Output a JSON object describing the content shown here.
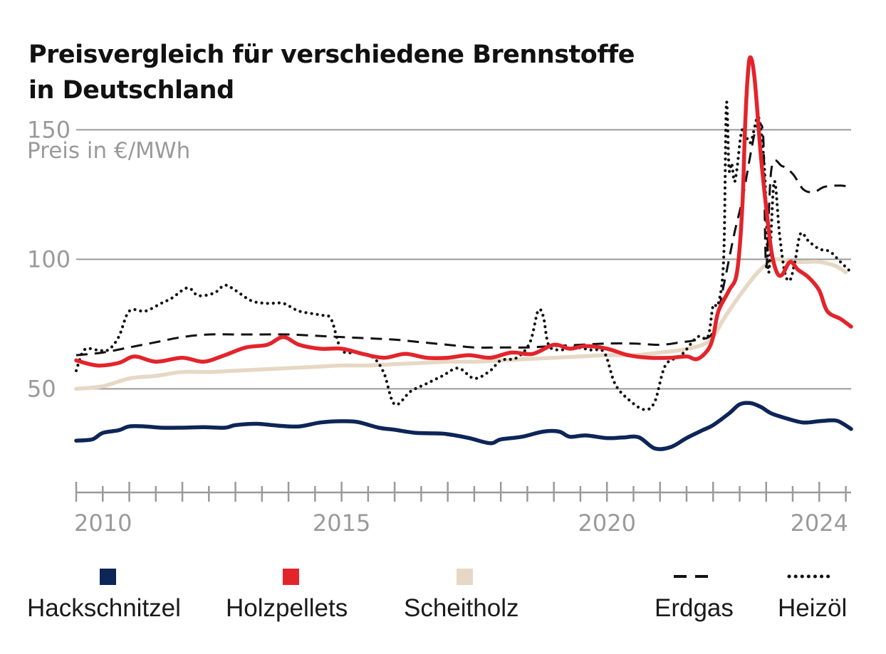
{
  "colors": {
    "hackschnitzel": "#0d2557",
    "holzpellets": "#e3242b",
    "scheitholz": "#e6d8c4",
    "erdgas": "#111111",
    "heizoel": "#111111",
    "grid": "#9a9a9a"
  },
  "chart_data": {
    "type": "line",
    "title": "Preisvergleich für verschiedene Brennstoffe in Deutschland",
    "title_lines": [
      "Preisvergleich für verschiedene Brennstoffe",
      "in Deutschland"
    ],
    "ylabel": "Preis in €/MWh",
    "xlabel": "",
    "xlim": [
      2010,
      2024.6
    ],
    "ylim": [
      10,
      160
    ],
    "yticks": [
      50,
      100,
      150
    ],
    "ytick_labels": [
      "50",
      "100",
      "150"
    ],
    "xticks_major": [
      2010,
      2015,
      2020,
      2024
    ],
    "xtick_labels": [
      "2010",
      "2015",
      "2020",
      "2024"
    ],
    "grid": true,
    "legend_position": "bottom",
    "series": [
      {
        "name": "Hackschnitzel",
        "style": "solid",
        "color_key": "hackschnitzel",
        "x": [
          2010,
          2010.3,
          2010.5,
          2010.8,
          2011,
          2011.3,
          2011.6,
          2012,
          2012.4,
          2012.8,
          2013,
          2013.4,
          2013.8,
          2014.2,
          2014.6,
          2015,
          2015.3,
          2015.7,
          2016,
          2016.4,
          2016.8,
          2017,
          2017.4,
          2017.8,
          2018,
          2018.4,
          2018.8,
          2019.1,
          2019.3,
          2019.6,
          2020,
          2020.3,
          2020.6,
          2020.9,
          2021.2,
          2021.5,
          2021.8,
          2022,
          2022.3,
          2022.5,
          2022.7,
          2022.9,
          2023.1,
          2023.4,
          2023.7,
          2024,
          2024.3,
          2024.45,
          2024.6
        ],
        "y": [
          30,
          30.5,
          33,
          34,
          35.5,
          35.5,
          35,
          35,
          35.2,
          35,
          36,
          36.5,
          35.8,
          35.5,
          37,
          37.5,
          37.2,
          35,
          34.2,
          33,
          32.8,
          32.5,
          31,
          29,
          30.5,
          31.5,
          33.5,
          33.5,
          31.5,
          32,
          31,
          31.2,
          31.3,
          27,
          27.5,
          31,
          34,
          36,
          40.5,
          44,
          44.5,
          43,
          40.5,
          38.5,
          37,
          37.5,
          37.8,
          36.5,
          34.5
        ]
      },
      {
        "name": "Holzpellets",
        "style": "solid",
        "color_key": "holzpellets",
        "x": [
          2010,
          2010.4,
          2010.8,
          2011.1,
          2011.5,
          2012,
          2012.4,
          2012.8,
          2013.2,
          2013.6,
          2013.9,
          2014.2,
          2014.6,
          2015,
          2015.4,
          2015.8,
          2016.2,
          2016.6,
          2017,
          2017.4,
          2017.8,
          2018.2,
          2018.6,
          2019,
          2019.3,
          2019.6,
          2020,
          2020.4,
          2020.8,
          2021.2,
          2021.5,
          2021.7,
          2021.9,
          2022,
          2022.1,
          2022.3,
          2022.45,
          2022.55,
          2022.6,
          2022.65,
          2022.7,
          2022.78,
          2022.9,
          2023,
          2023.1,
          2023.2,
          2023.3,
          2023.45,
          2023.6,
          2023.8,
          2024,
          2024.15,
          2024.4,
          2024.6
        ],
        "y": [
          61,
          59,
          60,
          62.5,
          60.5,
          62,
          60.5,
          63,
          66,
          67,
          70,
          67,
          65.5,
          65.5,
          63.5,
          62,
          63.5,
          62,
          62,
          63,
          62,
          64,
          63.5,
          67,
          65.5,
          66.5,
          65.5,
          63,
          62,
          62,
          62.5,
          61.5,
          65,
          70,
          80,
          88,
          95,
          120,
          150,
          170,
          178,
          170,
          140,
          120,
          103,
          95,
          94,
          99,
          96,
          93,
          88,
          80,
          77,
          74
        ]
      },
      {
        "name": "Scheitholz",
        "style": "solid",
        "color_key": "scheitholz",
        "x": [
          2010,
          2010.5,
          2011,
          2011.5,
          2012,
          2012.5,
          2013,
          2013.5,
          2014,
          2014.5,
          2015,
          2015.5,
          2016,
          2016.5,
          2017,
          2017.5,
          2018,
          2018.5,
          2019,
          2019.5,
          2020,
          2020.5,
          2021,
          2021.4,
          2021.8,
          2022,
          2022.2,
          2022.5,
          2022.8,
          2023,
          2023.2,
          2023.5,
          2023.8,
          2024,
          2024.3,
          2024.5
        ],
        "y": [
          50,
          51,
          54,
          55,
          56.5,
          56.5,
          57,
          57.5,
          58,
          58.5,
          59,
          59,
          59.5,
          60,
          60.5,
          60.5,
          61,
          61.5,
          62,
          62.5,
          63,
          63,
          64,
          65,
          67,
          70,
          77,
          86,
          94,
          98,
          100,
          99,
          99,
          99,
          97.5,
          95
        ]
      },
      {
        "name": "Erdgas",
        "style": "dashed",
        "color_key": "erdgas",
        "x": [
          2010,
          2010.5,
          2011,
          2011.5,
          2012,
          2012.5,
          2013,
          2013.5,
          2014,
          2014.5,
          2015,
          2015.5,
          2016,
          2016.5,
          2017,
          2017.5,
          2018,
          2018.5,
          2019,
          2019.5,
          2020,
          2020.5,
          2021,
          2021.4,
          2021.7,
          2022,
          2022.2,
          2022.4,
          2022.55,
          2022.7,
          2022.8,
          2022.88,
          2022.95,
          2023,
          2023.1,
          2023.3,
          2023.5,
          2023.7,
          2023.9,
          2024.1,
          2024.4,
          2024.55
        ],
        "y": [
          63,
          64,
          66,
          68,
          70,
          71,
          71,
          71,
          71,
          70.5,
          70,
          69.5,
          69,
          68,
          67,
          66,
          66,
          66,
          66.5,
          67,
          67.5,
          67.5,
          67,
          68,
          69,
          72,
          90,
          110,
          123,
          140,
          150,
          152,
          145,
          97,
          135,
          136,
          133,
          127,
          126,
          128,
          128.5,
          128
        ]
      },
      {
        "name": "Heizöl",
        "style": "dotted",
        "color_key": "heizoel",
        "x": [
          2010,
          2010.15,
          2010.4,
          2010.6,
          2010.8,
          2011,
          2011.3,
          2011.6,
          2011.8,
          2012.1,
          2012.3,
          2012.6,
          2012.8,
          2013,
          2013.3,
          2013.6,
          2013.9,
          2014.2,
          2014.6,
          2014.8,
          2015,
          2015.3,
          2015.6,
          2015.8,
          2016,
          2016.3,
          2016.6,
          2016.9,
          2017.2,
          2017.5,
          2017.8,
          2018,
          2018.3,
          2018.55,
          2018.7,
          2018.8,
          2018.9,
          2019.1,
          2019.4,
          2019.7,
          2019.95,
          2020.15,
          2020.4,
          2020.7,
          2020.9,
          2021.1,
          2021.4,
          2021.7,
          2021.9,
          2022,
          2022.1,
          2022.2,
          2022.25,
          2022.3,
          2022.35,
          2022.4,
          2022.45,
          2022.55,
          2022.7,
          2022.85,
          2022.95,
          2023,
          2023.05,
          2023.15,
          2023.25,
          2023.35,
          2023.45,
          2023.55,
          2023.65,
          2023.8,
          2024,
          2024.2,
          2024.4,
          2024.6
        ],
        "y": [
          57,
          65,
          65,
          65,
          70,
          80,
          80,
          83,
          85,
          89,
          86,
          87,
          90,
          88,
          84,
          83,
          83,
          80,
          78.5,
          77,
          65,
          64,
          62,
          56,
          44,
          49,
          52,
          55,
          58,
          54,
          57,
          61,
          62,
          68,
          80,
          78,
          67,
          65,
          66,
          65,
          64,
          52,
          46,
          42,
          45,
          59,
          63,
          70,
          70,
          82,
          83,
          101,
          160,
          135,
          137,
          130,
          135,
          150,
          145,
          155,
          140,
          120,
          95,
          130,
          110,
          95,
          92,
          100,
          110,
          107,
          104,
          103,
          99,
          95
        ]
      }
    ]
  }
}
